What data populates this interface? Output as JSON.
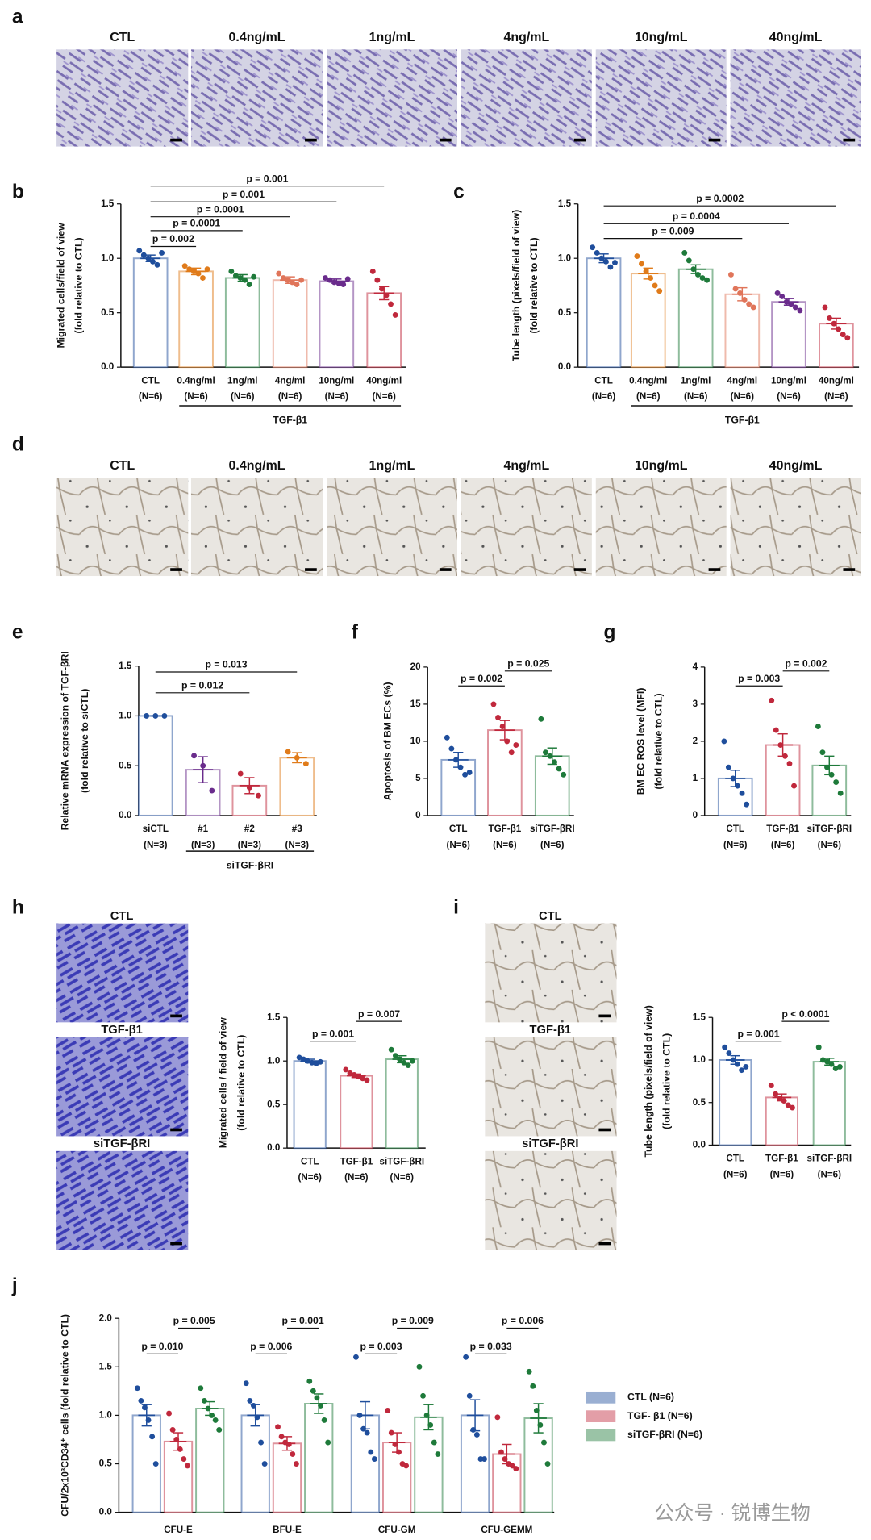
{
  "panels": [
    "a",
    "b",
    "c",
    "d",
    "e",
    "f",
    "g",
    "h",
    "i",
    "j"
  ],
  "images": {
    "a": [
      "CTL",
      "0.4ng/mL",
      "1ng/mL",
      "4ng/mL",
      "10ng/mL",
      "40ng/mL"
    ],
    "d": [
      "CTL",
      "0.4ng/mL",
      "1ng/mL",
      "4ng/mL",
      "10ng/mL",
      "40ng/mL"
    ],
    "h": [
      "CTL",
      "TGF-β1",
      "siTGF-βRI"
    ],
    "i": [
      "CTL",
      "TGF-β1",
      "siTGF-βRI"
    ]
  },
  "watermark": "公众号 · 锐博生物",
  "chart_data": [
    {
      "type": "bar",
      "ylabel": [
        "Migrated cells/field of view",
        "(fold relative to CTL)"
      ],
      "categories": [
        "CTL",
        "0.4ng/ml",
        "1ng/ml",
        "4ng/ml",
        "10ng/ml",
        "40ng/ml"
      ],
      "category_notes": [
        "(N=6)",
        "(N=6)",
        "(N=6)",
        "(N=6)",
        "(N=6)",
        "(N=6)"
      ],
      "values": [
        1.0,
        0.88,
        0.82,
        0.8,
        0.79,
        0.68
      ],
      "errors": [
        0.03,
        0.03,
        0.03,
        0.03,
        0.02,
        0.06
      ],
      "points": [
        [
          1.07,
          1.03,
          1.0,
          0.97,
          0.94,
          1.05
        ],
        [
          0.93,
          0.9,
          0.88,
          0.86,
          0.82,
          0.9
        ],
        [
          0.88,
          0.84,
          0.82,
          0.8,
          0.76,
          0.83
        ],
        [
          0.86,
          0.82,
          0.8,
          0.78,
          0.76,
          0.8
        ],
        [
          0.82,
          0.8,
          0.78,
          0.77,
          0.76,
          0.81
        ],
        [
          0.88,
          0.8,
          0.72,
          0.66,
          0.58,
          0.48
        ]
      ],
      "colors": [
        "#1f4e9c",
        "#e07b1a",
        "#1e7a3a",
        "#e0755a",
        "#6a2c8c",
        "#c0283c"
      ],
      "ylim": [
        0,
        1.5
      ],
      "yticks": [
        {
          "value": 0,
          "label": "0.0"
        },
        0.5,
        {
          "value": 1,
          "label": "1.0"
        },
        1.5
      ],
      "group_label": {
        "text": "TGF-β1",
        "span": [
          1,
          5
        ]
      },
      "brackets": [
        {
          "span": [
            0,
            1
          ],
          "label": "p = 0.002"
        },
        {
          "span": [
            0,
            2
          ],
          "label": "p = 0.0001"
        },
        {
          "span": [
            0,
            3
          ],
          "label": "p = 0.0001"
        },
        {
          "span": [
            0,
            4
          ],
          "label": "p = 0.001"
        },
        {
          "span": [
            0,
            5
          ],
          "label": "p = 0.001"
        }
      ]
    },
    {
      "type": "bar",
      "ylabel": [
        "Tube length (pixels/field of view)",
        "(fold relative to CTL)"
      ],
      "categories": [
        "CTL",
        "0.4ng/ml",
        "1ng/ml",
        "4ng/ml",
        "10ng/ml",
        "40ng/ml"
      ],
      "category_notes": [
        "(N=6)",
        "(N=6)",
        "(N=6)",
        "(N=6)",
        "(N=6)",
        "(N=6)"
      ],
      "values": [
        1.0,
        0.86,
        0.9,
        0.67,
        0.6,
        0.4
      ],
      "errors": [
        0.04,
        0.05,
        0.04,
        0.06,
        0.03,
        0.05
      ],
      "points": [
        [
          1.1,
          1.05,
          1.0,
          0.97,
          0.92,
          0.96
        ],
        [
          1.02,
          0.95,
          0.88,
          0.82,
          0.75,
          0.7
        ],
        [
          1.05,
          0.98,
          0.9,
          0.85,
          0.82,
          0.8
        ],
        [
          0.85,
          0.72,
          0.68,
          0.62,
          0.58,
          0.55
        ],
        [
          0.68,
          0.65,
          0.6,
          0.58,
          0.55,
          0.52
        ],
        [
          0.55,
          0.45,
          0.4,
          0.35,
          0.3,
          0.27
        ]
      ],
      "colors": [
        "#1f4e9c",
        "#e07b1a",
        "#1e7a3a",
        "#e0755a",
        "#6a2c8c",
        "#c0283c"
      ],
      "ylim": [
        0,
        1.5
      ],
      "yticks": [
        {
          "value": 0,
          "label": "0.0"
        },
        0.5,
        {
          "value": 1,
          "label": "1.0"
        },
        1.5
      ],
      "group_label": {
        "text": "TGF-β1",
        "span": [
          1,
          5
        ]
      },
      "brackets": [
        {
          "span": [
            0,
            3
          ],
          "label": "p = 0.009"
        },
        {
          "span": [
            0,
            4
          ],
          "label": "p = 0.0004"
        },
        {
          "span": [
            0,
            5
          ],
          "label": "p = 0.0002"
        }
      ]
    },
    {
      "type": "bar",
      "ylabel": [
        "Relative mRNA expression of TGF-βRI",
        "(fold relative to siCTL)"
      ],
      "categories": [
        "siCTL",
        "#1",
        "#2",
        "#3"
      ],
      "category_notes": [
        "(N=3)",
        "(N=3)",
        "(N=3)",
        "(N=3)"
      ],
      "values": [
        1.0,
        0.46,
        0.3,
        0.58
      ],
      "errors": [
        0.0,
        0.13,
        0.08,
        0.05
      ],
      "points": [
        [
          1,
          1,
          1
        ],
        [
          0.6,
          0.5,
          0.25
        ],
        [
          0.42,
          0.28,
          0.2
        ],
        [
          0.64,
          0.58,
          0.52
        ]
      ],
      "colors": [
        "#1f4e9c",
        "#6a2c8c",
        "#c0283c",
        "#e07b1a"
      ],
      "ylim": [
        0,
        1.5
      ],
      "yticks": [
        {
          "value": 0,
          "label": "0.0"
        },
        0.5,
        {
          "value": 1,
          "label": "1.0"
        },
        1.5
      ],
      "group_label": {
        "text": "siTGF-βRI",
        "span": [
          1,
          3
        ]
      },
      "brackets": [
        {
          "span": [
            0,
            2
          ],
          "label": "p = 0.012"
        },
        {
          "span": [
            0,
            3
          ],
          "label": "p = 0.013"
        }
      ]
    },
    {
      "type": "bar",
      "ylabel": [
        "Apoptosis of  BM ECs (%)"
      ],
      "categories": [
        "CTL",
        "TGF-β1",
        "siTGF-βRI"
      ],
      "category_notes": [
        "(N=6)",
        "(N=6)",
        "(N=6)"
      ],
      "values": [
        7.5,
        11.5,
        8.0
      ],
      "errors": [
        1.0,
        1.3,
        1.1
      ],
      "points": [
        [
          10.5,
          9,
          7.5,
          6.5,
          5.5,
          5.8
        ],
        [
          15,
          13.2,
          12,
          10,
          8.5,
          9.5
        ],
        [
          13,
          8.5,
          8,
          7.2,
          6.3,
          5.5
        ]
      ],
      "colors": [
        "#1f4e9c",
        "#c0283c",
        "#1e7a3a"
      ],
      "ylim": [
        0,
        20
      ],
      "yticks": [
        0,
        5,
        10,
        15,
        20
      ],
      "brackets": [
        {
          "span": [
            0,
            1
          ],
          "label": "p = 0.002"
        },
        {
          "span": [
            1,
            2
          ],
          "label": "p = 0.025"
        }
      ]
    },
    {
      "type": "bar",
      "ylabel": [
        "BM EC ROS level (MFI)",
        "(fold relative to CTL)"
      ],
      "categories": [
        "CTL",
        "TGF-β1",
        "siTGF-βRI"
      ],
      "category_notes": [
        "(N=6)",
        "(N=6)",
        "(N=6)"
      ],
      "values": [
        1.0,
        1.9,
        1.35
      ],
      "errors": [
        0.22,
        0.3,
        0.25
      ],
      "points": [
        [
          2.0,
          1.3,
          1.0,
          0.8,
          0.6,
          0.3
        ],
        [
          3.1,
          2.3,
          1.9,
          1.6,
          1.4,
          0.8
        ],
        [
          2.4,
          1.7,
          1.3,
          1.1,
          0.9,
          0.6
        ]
      ],
      "colors": [
        "#1f4e9c",
        "#c0283c",
        "#1e7a3a"
      ],
      "ylim": [
        0,
        4
      ],
      "yticks": [
        0,
        1,
        2,
        3,
        4
      ],
      "brackets": [
        {
          "span": [
            0,
            1
          ],
          "label": "p = 0.003"
        },
        {
          "span": [
            1,
            2
          ],
          "label": "p = 0.002"
        }
      ]
    },
    {
      "type": "bar",
      "ylabel": [
        "Migrated cells / field of view",
        "(fold relative to CTL)"
      ],
      "categories": [
        "CTL",
        "TGF-β1",
        "siTGF-βRI"
      ],
      "category_notes": [
        "(N=6)",
        "(N=6)",
        "(N=6)"
      ],
      "values": [
        1.0,
        0.83,
        1.02
      ],
      "errors": [
        0.02,
        0.02,
        0.04
      ],
      "points": [
        [
          1.04,
          1.02,
          1.0,
          0.98,
          0.97,
          0.99
        ],
        [
          0.9,
          0.86,
          0.84,
          0.82,
          0.8,
          0.78
        ],
        [
          1.13,
          1.06,
          1.02,
          0.98,
          0.95,
          1.0
        ]
      ],
      "colors": [
        "#1f4e9c",
        "#c0283c",
        "#1e7a3a"
      ],
      "ylim": [
        0,
        1.5
      ],
      "yticks": [
        {
          "value": 0,
          "label": "0.0"
        },
        0.5,
        {
          "value": 1,
          "label": "1.0"
        },
        1.5
      ],
      "brackets": [
        {
          "span": [
            0,
            1
          ],
          "label": "p = 0.001"
        },
        {
          "span": [
            1,
            2
          ],
          "label": "p = 0.007"
        }
      ]
    },
    {
      "type": "bar",
      "ylabel": [
        "Tube length (pixels/field of view)",
        "(fold relative to CTL)"
      ],
      "categories": [
        "CTL",
        "TGF-β1",
        "siTGF-βRI"
      ],
      "category_notes": [
        "(N=6)",
        "(N=6)",
        "(N=6)"
      ],
      "values": [
        1.0,
        0.56,
        0.98
      ],
      "errors": [
        0.05,
        0.04,
        0.04
      ],
      "points": [
        [
          1.15,
          1.08,
          1.0,
          0.95,
          0.88,
          0.92
        ],
        [
          0.7,
          0.6,
          0.55,
          0.52,
          0.47,
          0.44
        ],
        [
          1.15,
          1.0,
          0.98,
          0.95,
          0.9,
          0.92
        ]
      ],
      "colors": [
        "#1f4e9c",
        "#c0283c",
        "#1e7a3a"
      ],
      "ylim": [
        0,
        1.5
      ],
      "yticks": [
        {
          "value": 0,
          "label": "0.0"
        },
        0.5,
        {
          "value": 1,
          "label": "1.0"
        },
        1.5
      ],
      "brackets": [
        {
          "span": [
            0,
            1
          ],
          "label": "p = 0.001"
        },
        {
          "span": [
            1,
            2
          ],
          "label": "p < 0.0001"
        }
      ]
    },
    {
      "type": "grouped_bar",
      "ylabel": [
        "CFU/2x10³CD34⁺ cells  (fold relative to CTL)"
      ],
      "categories": [
        "CFU-E",
        "BFU-E",
        "CFU-GM",
        "CFU-GEMM"
      ],
      "series": [
        {
          "name": "CTL (N=6)",
          "color": "#1f4e9c",
          "values": [
            1.0,
            1.0,
            1.0,
            1.0
          ],
          "errors": [
            0.11,
            0.11,
            0.14,
            0.16
          ],
          "points": [
            [
              1.28,
              1.15,
              1.08,
              0.95,
              0.78,
              0.5
            ],
            [
              1.33,
              1.15,
              1.1,
              0.98,
              0.72,
              0.5
            ],
            [
              1.6,
              1.0,
              0.86,
              0.82,
              0.62,
              0.55
            ],
            [
              1.6,
              1.2,
              0.85,
              0.8,
              0.55,
              0.55
            ]
          ]
        },
        {
          "name": "TGF- β1 (N=6)",
          "color": "#c0283c",
          "values": [
            0.73,
            0.71,
            0.72,
            0.6
          ],
          "errors": [
            0.09,
            0.07,
            0.1,
            0.1
          ],
          "points": [
            [
              1.02,
              0.85,
              0.75,
              0.65,
              0.55,
              0.48
            ],
            [
              0.88,
              0.78,
              0.72,
              0.7,
              0.6,
              0.5
            ],
            [
              1.05,
              0.82,
              0.7,
              0.62,
              0.5,
              0.48
            ],
            [
              0.98,
              0.62,
              0.55,
              0.5,
              0.48,
              0.45
            ]
          ]
        },
        {
          "name": "siTGF-βRI (N=6)",
          "color": "#1e7a3a",
          "values": [
            1.07,
            1.12,
            0.98,
            0.97
          ],
          "errors": [
            0.07,
            0.1,
            0.13,
            0.15
          ],
          "points": [
            [
              1.28,
              1.15,
              1.07,
              1.0,
              0.95,
              0.85
            ],
            [
              1.35,
              1.25,
              1.18,
              1.1,
              0.95,
              0.72
            ],
            [
              1.5,
              1.2,
              1.0,
              0.9,
              0.72,
              0.6
            ],
            [
              1.45,
              1.3,
              1.05,
              0.9,
              0.72,
              0.5
            ]
          ]
        }
      ],
      "ylim": [
        0,
        2
      ],
      "yticks": [
        {
          "value": 0,
          "label": "0.0"
        },
        0.5,
        {
          "value": 1,
          "label": "1.0"
        },
        1.5,
        {
          "value": 2,
          "label": "2.0"
        }
      ],
      "brackets": [
        {
          "category": 0,
          "series": [
            0,
            1
          ],
          "label": "p = 0.010"
        },
        {
          "category": 0,
          "series": [
            1,
            2
          ],
          "label": "p = 0.005"
        },
        {
          "category": 1,
          "series": [
            0,
            1
          ],
          "label": "p = 0.006"
        },
        {
          "category": 1,
          "series": [
            1,
            2
          ],
          "label": "p = 0.001"
        },
        {
          "category": 2,
          "series": [
            0,
            1
          ],
          "label": "p = 0.003"
        },
        {
          "category": 2,
          "series": [
            1,
            2
          ],
          "label": "p = 0.009"
        },
        {
          "category": 3,
          "series": [
            0,
            1
          ],
          "label": "p = 0.033"
        },
        {
          "category": 3,
          "series": [
            1,
            2
          ],
          "label": "p = 0.006"
        }
      ]
    }
  ]
}
